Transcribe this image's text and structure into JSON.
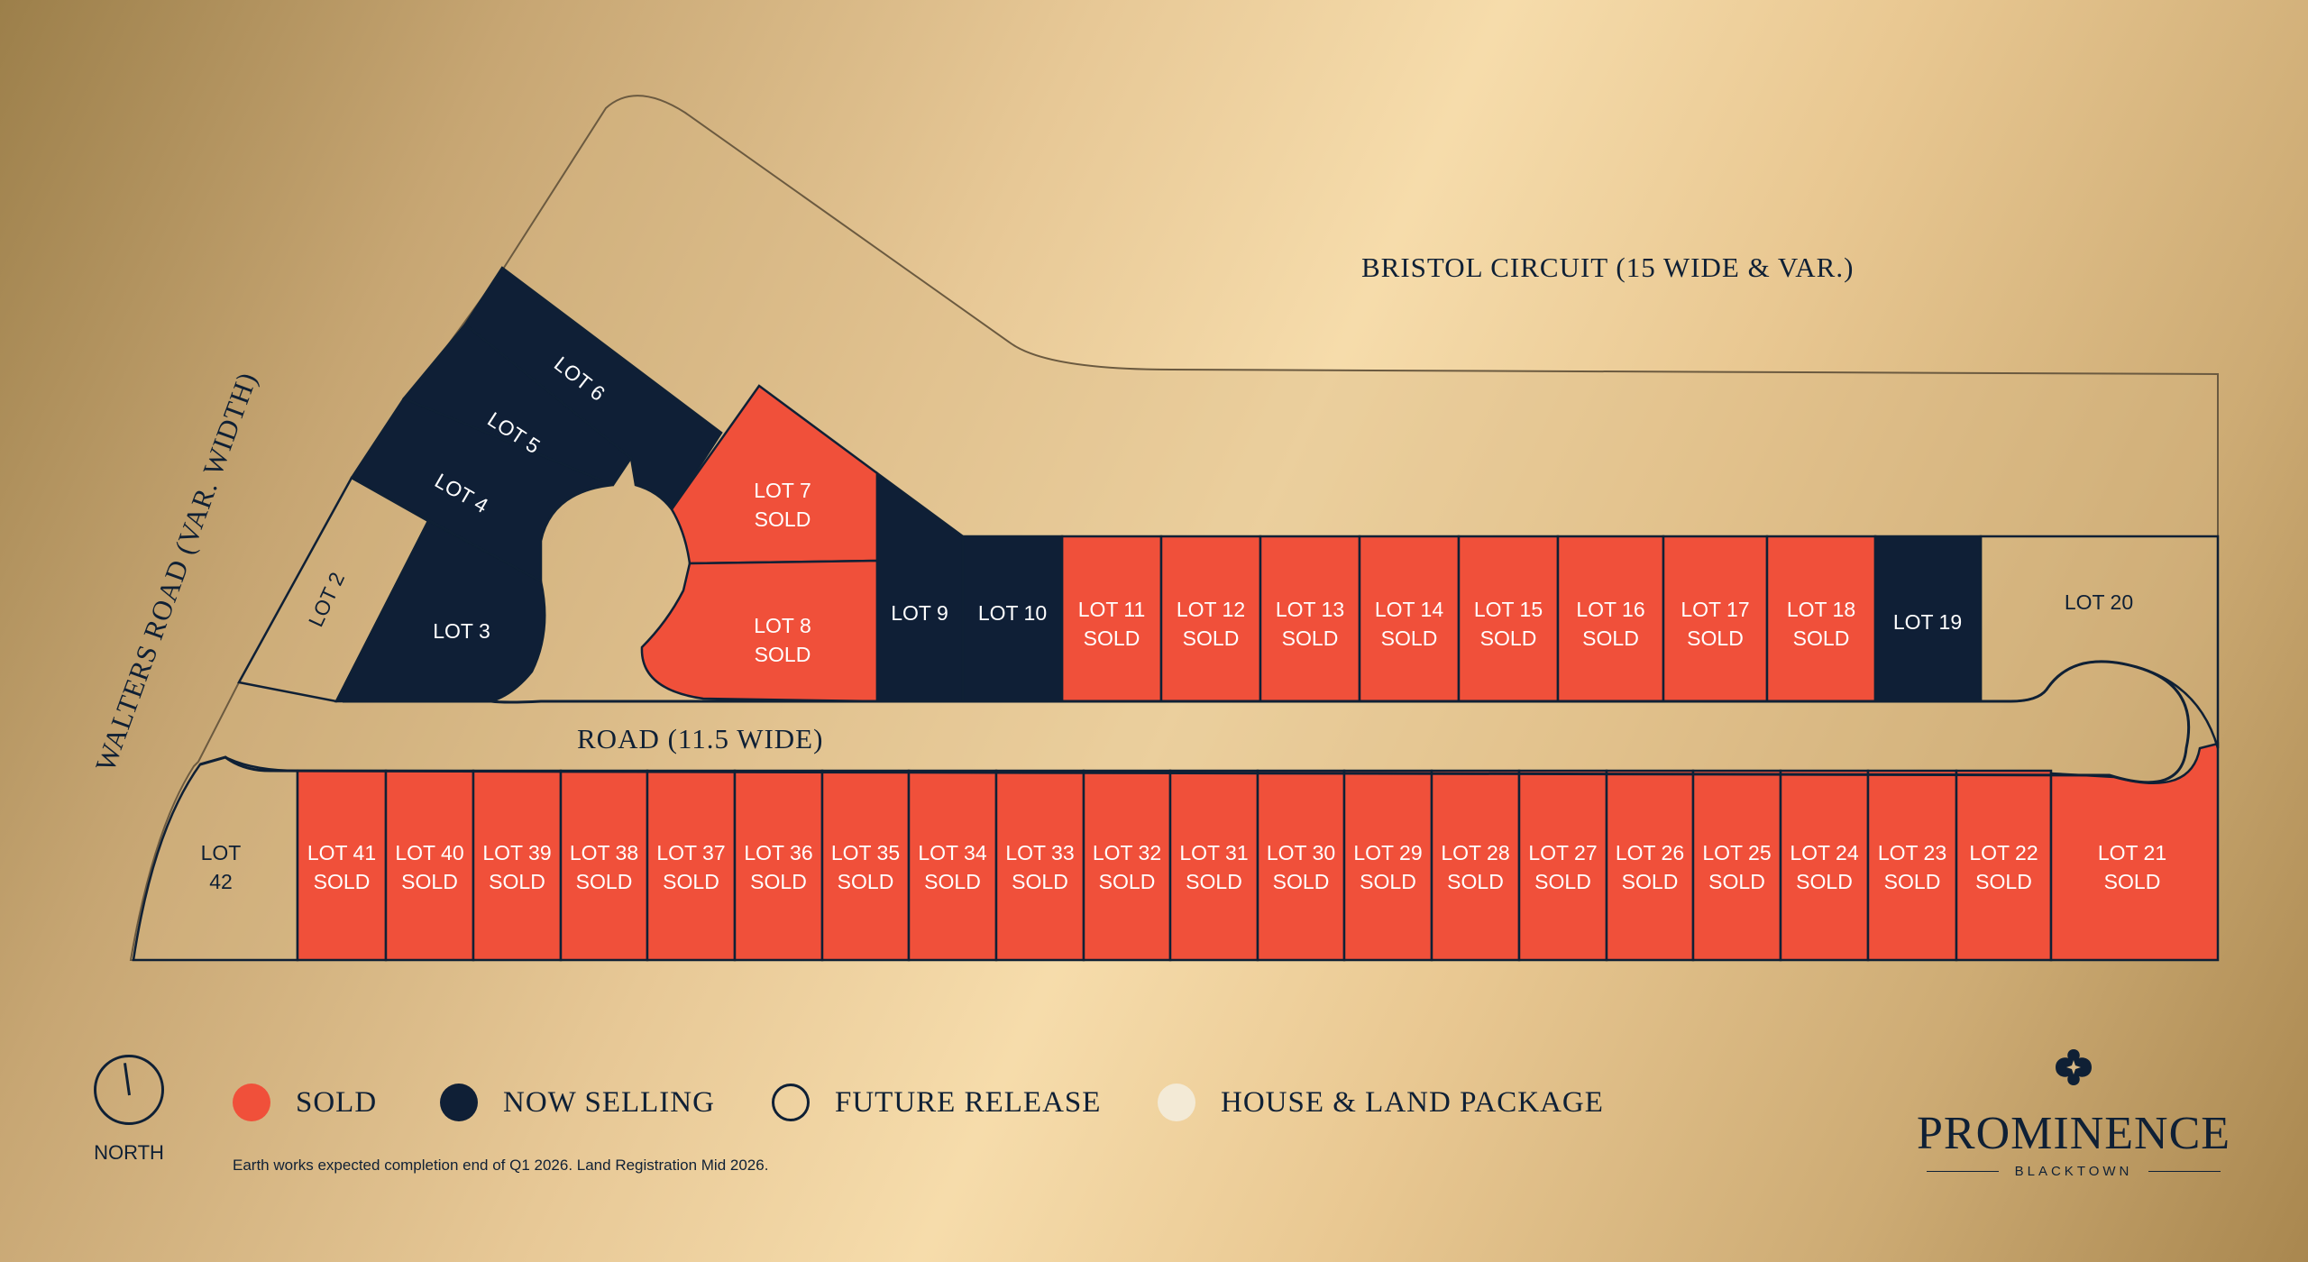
{
  "colors": {
    "sold": "#f0503a",
    "now_selling": "#0f1f36",
    "future_release": "#d1b07c",
    "house_land": "#f3ead6",
    "line": "#0f2035"
  },
  "roads": {
    "bristol": "BRISTOL CIRCUIT (15 WIDE & VAR.)",
    "walters": "WALTERS ROAD (VAR. WIDTH)",
    "road": "ROAD (11.5 WIDE)"
  },
  "lots": [
    {
      "id": "lot42",
      "name": "LOT",
      "name2": "42",
      "status": "future_release"
    },
    {
      "id": "lot41",
      "name": "LOT 41",
      "status_label": "SOLD",
      "status": "sold"
    },
    {
      "id": "lot40",
      "name": "LOT 40",
      "status_label": "SOLD",
      "status": "sold"
    },
    {
      "id": "lot39",
      "name": "LOT 39",
      "status_label": "SOLD",
      "status": "sold"
    },
    {
      "id": "lot38",
      "name": "LOT 38",
      "status_label": "SOLD",
      "status": "sold"
    },
    {
      "id": "lot37",
      "name": "LOT 37",
      "status_label": "SOLD",
      "status": "sold"
    },
    {
      "id": "lot36",
      "name": "LOT 36",
      "status_label": "SOLD",
      "status": "sold"
    },
    {
      "id": "lot35",
      "name": "LOT 35",
      "status_label": "SOLD",
      "status": "sold"
    },
    {
      "id": "lot34",
      "name": "LOT 34",
      "status_label": "SOLD",
      "status": "sold"
    },
    {
      "id": "lot33",
      "name": "LOT 33",
      "status_label": "SOLD",
      "status": "sold"
    },
    {
      "id": "lot32",
      "name": "LOT 32",
      "status_label": "SOLD",
      "status": "sold"
    },
    {
      "id": "lot31",
      "name": "LOT 31",
      "status_label": "SOLD",
      "status": "sold"
    },
    {
      "id": "lot30",
      "name": "LOT 30",
      "status_label": "SOLD",
      "status": "sold"
    },
    {
      "id": "lot29",
      "name": "LOT 29",
      "status_label": "SOLD",
      "status": "sold"
    },
    {
      "id": "lot28",
      "name": "LOT 28",
      "status_label": "SOLD",
      "status": "sold"
    },
    {
      "id": "lot27",
      "name": "LOT 27",
      "status_label": "SOLD",
      "status": "sold"
    },
    {
      "id": "lot26",
      "name": "LOT 26",
      "status_label": "SOLD",
      "status": "sold"
    },
    {
      "id": "lot25",
      "name": "LOT 25",
      "status_label": "SOLD",
      "status": "sold"
    },
    {
      "id": "lot24",
      "name": "LOT 24",
      "status_label": "SOLD",
      "status": "sold"
    },
    {
      "id": "lot23",
      "name": "LOT 23",
      "status_label": "SOLD",
      "status": "sold"
    },
    {
      "id": "lot22",
      "name": "LOT 22",
      "status_label": "SOLD",
      "status": "sold"
    },
    {
      "id": "lot21",
      "name": "LOT 21",
      "status_label": "SOLD",
      "status": "sold"
    },
    {
      "id": "lot11",
      "name": "LOT 11",
      "status_label": "SOLD",
      "status": "sold"
    },
    {
      "id": "lot12",
      "name": "LOT 12",
      "status_label": "SOLD",
      "status": "sold"
    },
    {
      "id": "lot13",
      "name": "LOT 13",
      "status_label": "SOLD",
      "status": "sold"
    },
    {
      "id": "lot14",
      "name": "LOT 14",
      "status_label": "SOLD",
      "status": "sold"
    },
    {
      "id": "lot15",
      "name": "LOT 15",
      "status_label": "SOLD",
      "status": "sold"
    },
    {
      "id": "lot16",
      "name": "LOT 16",
      "status_label": "SOLD",
      "status": "sold"
    },
    {
      "id": "lot17",
      "name": "LOT 17",
      "status_label": "SOLD",
      "status": "sold"
    },
    {
      "id": "lot18",
      "name": "LOT 18",
      "status_label": "SOLD",
      "status": "sold"
    },
    {
      "id": "lot7",
      "name": "LOT 7",
      "status_label": "SOLD",
      "status": "sold"
    },
    {
      "id": "lot8",
      "name": "LOT 8",
      "status_label": "SOLD",
      "status": "sold"
    },
    {
      "id": "lot9",
      "name": "LOT 9",
      "status": "now_selling"
    },
    {
      "id": "lot10",
      "name": "LOT 10",
      "status": "now_selling"
    },
    {
      "id": "lot19",
      "name": "LOT 19",
      "status": "now_selling"
    },
    {
      "id": "lot20",
      "name": "LOT 20",
      "status": "future_release"
    },
    {
      "id": "lot3",
      "name": "LOT 3",
      "status": "now_selling"
    },
    {
      "id": "lot4",
      "name": "LOT 4",
      "status": "now_selling"
    },
    {
      "id": "lot5",
      "name": "LOT 5",
      "status": "now_selling"
    },
    {
      "id": "lot6",
      "name": "LOT 6",
      "status": "now_selling"
    },
    {
      "id": "lot2",
      "name": "LOT 2",
      "status": "future_release"
    }
  ],
  "legend": {
    "north": "NORTH",
    "sold": "SOLD",
    "now_selling": "NOW SELLING",
    "future_release": "FUTURE RELEASE",
    "house_land": "HOUSE & LAND PACKAGE"
  },
  "note": "Earth works expected completion end of Q1 2026. Land Registration Mid 2026.",
  "brand": {
    "name": "PROMINENCE",
    "sub": "BLACKTOWN"
  }
}
